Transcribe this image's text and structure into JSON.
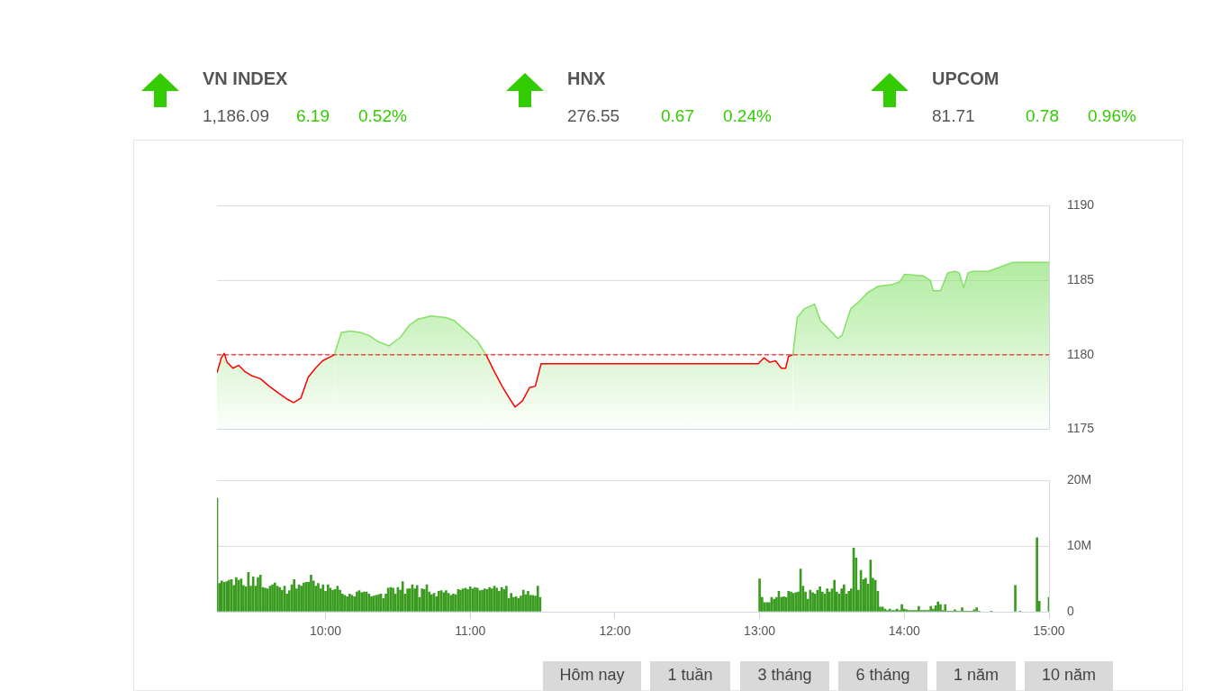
{
  "chart_data": [
    {
      "type": "other",
      "categories": [
        "VN INDEX",
        "HNX",
        "UPCOM"
      ],
      "series": [
        {
          "color": "#555555",
          "values": [
            1186.09,
            276.55,
            81.71
          ],
          "value_labels": [
            "1,186.09",
            "276.55",
            "81.71"
          ]
        },
        {
          "color": "#33cc00",
          "values": [
            6.19,
            0.67,
            0.78
          ],
          "value_labels": [
            "6.19",
            "0.67",
            "0.78"
          ]
        },
        {
          "color": "#33cc00",
          "values": [
            0.52,
            0.24,
            0.96
          ],
          "value_labels": [
            "0.52%",
            "0.24%",
            "0.96%"
          ]
        }
      ]
    },
    {
      "type": "area",
      "xlim": [
        9.25,
        15
      ],
      "ylim": [
        1175,
        1190
      ],
      "yticks": [
        1175,
        1180,
        1185,
        1190
      ],
      "grid": "y",
      "tick_labels": "y",
      "series": [
        {
          "type": "area",
          "color": "#ff0000",
          "x": [
            9.25,
            9.28,
            9.3,
            9.32,
            9.36,
            9.4,
            9.44,
            9.49,
            9.55,
            9.61,
            9.68,
            9.74,
            9.78,
            9.83,
            9.88,
            9.93,
            9.98,
            10.02,
            10.06
          ],
          "values": [
            1178.8,
            1179.8,
            1180.1,
            1179.5,
            1179.1,
            1179.3,
            1178.9,
            1178.6,
            1178.4,
            1177.9,
            1177.4,
            1177.0,
            1176.8,
            1177.1,
            1178.5,
            1179.1,
            1179.6,
            1179.8,
            1180.0
          ]
        },
        {
          "type": "area",
          "color": "#86e06a",
          "x": [
            10.06,
            10.11,
            10.17,
            10.24,
            10.3,
            10.36,
            10.44,
            10.52,
            10.58,
            10.64,
            10.73,
            10.83,
            10.89,
            10.97,
            11.05,
            11.11
          ],
          "values": [
            1180.0,
            1181.5,
            1181.6,
            1181.5,
            1181.3,
            1180.9,
            1180.6,
            1181.2,
            1182.0,
            1182.4,
            1182.6,
            1182.5,
            1182.3,
            1181.6,
            1180.9,
            1180.0
          ]
        },
        {
          "type": "area",
          "color": "#ff0000",
          "x": [
            11.11,
            11.16,
            11.22,
            11.27,
            11.31,
            11.36,
            11.41,
            11.45,
            11.49,
            11.98,
            12.73,
            12.99,
            13.03,
            13.07,
            13.11,
            13.15,
            13.18,
            13.2,
            13.23
          ],
          "values": [
            1180.0,
            1179.0,
            1177.9,
            1177.1,
            1176.5,
            1176.9,
            1177.8,
            1177.9,
            1179.4,
            1179.4,
            1179.4,
            1179.4,
            1179.8,
            1179.5,
            1179.6,
            1179.1,
            1179.1,
            1179.9,
            1180.0
          ]
        },
        {
          "type": "area",
          "color": "#86e06a",
          "x": [
            13.23,
            13.26,
            13.31,
            13.38,
            13.42,
            13.49,
            13.54,
            13.57,
            13.63,
            13.69,
            13.75,
            13.82,
            13.91,
            13.97,
            14.0,
            14.13,
            14.18,
            14.2,
            14.25,
            14.3,
            14.35,
            14.38,
            14.41,
            14.44,
            14.47,
            14.58,
            14.75,
            15.0
          ],
          "values": [
            1180.0,
            1182.5,
            1183.1,
            1183.4,
            1182.3,
            1181.6,
            1181.1,
            1181.3,
            1183.1,
            1183.6,
            1184.2,
            1184.6,
            1184.7,
            1184.9,
            1185.4,
            1185.3,
            1185.0,
            1184.3,
            1184.3,
            1185.5,
            1185.6,
            1185.5,
            1184.5,
            1185.5,
            1185.6,
            1185.6,
            1186.2,
            1186.2
          ]
        }
      ],
      "ref_lines": [
        {
          "axis": "y",
          "value": 1180,
          "color": "#ff0000",
          "line_style": "dashed"
        }
      ]
    },
    {
      "type": "bar",
      "color": "#3a9c1f",
      "xlim": [
        9.25,
        15
      ],
      "xticks": [
        {
          "value": 10,
          "label": "10:00"
        },
        {
          "value": 11,
          "label": "11:00"
        },
        {
          "value": 12,
          "label": "12:00"
        },
        {
          "value": 13,
          "label": "13:00"
        },
        {
          "value": 14,
          "label": "14:00"
        },
        {
          "value": 15,
          "label": "15:00"
        }
      ],
      "ylim": [
        0,
        20
      ],
      "yticks": [
        {
          "value": 0,
          "label": "0"
        },
        {
          "value": 10,
          "label": "10M"
        },
        {
          "value": 20,
          "label": "20M"
        }
      ],
      "grid": "y",
      "x": [
        9.25,
        9.267,
        9.283,
        9.3,
        9.317,
        9.333,
        9.35,
        9.367,
        9.383,
        9.4,
        9.417,
        9.433,
        9.45,
        9.467,
        9.483,
        9.5,
        9.517,
        9.533,
        9.55,
        9.567,
        9.583,
        9.6,
        9.617,
        9.633,
        9.65,
        9.667,
        9.683,
        9.7,
        9.717,
        9.733,
        9.75,
        9.767,
        9.783,
        9.8,
        9.817,
        9.833,
        9.85,
        9.867,
        9.883,
        9.9,
        9.917,
        9.933,
        9.95,
        9.967,
        9.983,
        10.0,
        10.017,
        10.033,
        10.05,
        10.067,
        10.083,
        10.1,
        10.117,
        10.133,
        10.15,
        10.167,
        10.183,
        10.2,
        10.217,
        10.233,
        10.25,
        10.267,
        10.283,
        10.3,
        10.317,
        10.333,
        10.35,
        10.367,
        10.383,
        10.4,
        10.417,
        10.433,
        10.45,
        10.467,
        10.483,
        10.5,
        10.517,
        10.533,
        10.55,
        10.567,
        10.583,
        10.6,
        10.617,
        10.633,
        10.65,
        10.667,
        10.683,
        10.7,
        10.717,
        10.733,
        10.75,
        10.767,
        10.783,
        10.8,
        10.817,
        10.833,
        10.85,
        10.867,
        10.883,
        10.9,
        10.917,
        10.933,
        10.95,
        10.967,
        10.983,
        11.0,
        11.017,
        11.033,
        11.05,
        11.067,
        11.083,
        11.1,
        11.117,
        11.133,
        11.15,
        11.167,
        11.183,
        11.2,
        11.217,
        11.233,
        11.25,
        11.267,
        11.283,
        11.3,
        11.317,
        11.333,
        11.35,
        11.367,
        11.383,
        11.4,
        11.417,
        11.433,
        11.45,
        11.467,
        11.483,
        13.0,
        13.017,
        13.033,
        13.05,
        13.067,
        13.083,
        13.1,
        13.117,
        13.133,
        13.15,
        13.167,
        13.183,
        13.2,
        13.217,
        13.233,
        13.25,
        13.267,
        13.283,
        13.3,
        13.317,
        13.333,
        13.35,
        13.367,
        13.383,
        13.4,
        13.417,
        13.433,
        13.45,
        13.467,
        13.483,
        13.5,
        13.517,
        13.533,
        13.55,
        13.567,
        13.583,
        13.6,
        13.617,
        13.633,
        13.65,
        13.667,
        13.683,
        13.7,
        13.717,
        13.733,
        13.75,
        13.767,
        13.783,
        13.8,
        13.817,
        13.833,
        13.85,
        13.867,
        13.883,
        13.9,
        13.917,
        13.933,
        13.95,
        13.967,
        13.983,
        14.0,
        14.017,
        14.033,
        14.05,
        14.067,
        14.083,
        14.1,
        14.117,
        14.133,
        14.15,
        14.167,
        14.183,
        14.2,
        14.217,
        14.233,
        14.25,
        14.267,
        14.283,
        14.3,
        14.317,
        14.333,
        14.35,
        14.367,
        14.383,
        14.4,
        14.417,
        14.433,
        14.45,
        14.467,
        14.483,
        14.5,
        14.517,
        14.6,
        14.767,
        14.8,
        14.917,
        14.933,
        15.0
      ],
      "values": [
        17.3,
        4.3,
        4.7,
        4.5,
        4.6,
        4.8,
        4.9,
        4.0,
        5.2,
        4.8,
        5.0,
        4.0,
        3.8,
        6.0,
        3.9,
        5.3,
        3.9,
        5.2,
        5.6,
        3.7,
        3.6,
        3.5,
        3.9,
        4.1,
        4.4,
        3.9,
        3.7,
        3.3,
        3.9,
        2.7,
        3.2,
        4.1,
        4.9,
        3.5,
        4.1,
        3.9,
        4.4,
        4.5,
        4.5,
        5.6,
        4.7,
        3.9,
        4.3,
        3.5,
        4.1,
        3.1,
        4.1,
        3.6,
        3.3,
        3.4,
        3.9,
        3.3,
        2.7,
        2.5,
        2.3,
        2.7,
        2.5,
        2.3,
        3.0,
        3.2,
        2.9,
        3.0,
        3.0,
        2.7,
        2.3,
        2.4,
        2.5,
        2.6,
        2.7,
        2.0,
        2.7,
        3.6,
        3.7,
        3.6,
        2.7,
        3.7,
        3.3,
        4.6,
        2.7,
        3.5,
        3.5,
        4.1,
        3.5,
        4.0,
        2.2,
        3.5,
        3.4,
        4.1,
        3.0,
        2.6,
        2.8,
        2.3,
        3.1,
        3.2,
        2.9,
        3.2,
        2.8,
        2.5,
        2.7,
        2.6,
        3.4,
        3.3,
        3.5,
        3.6,
        3.4,
        3.8,
        3.5,
        3.7,
        3.6,
        3.2,
        3.3,
        3.5,
        3.4,
        3.7,
        3.5,
        3.9,
        3.6,
        3.1,
        3.7,
        3.4,
        3.9,
        2.0,
        2.8,
        2.2,
        2.3,
        2.0,
        2.4,
        3.3,
        2.6,
        3.1,
        2.5,
        2.5,
        2.4,
        3.9,
        2.2,
        5.0,
        2.2,
        1.4,
        1.4,
        1.4,
        2.2,
        1.9,
        2.2,
        3.1,
        2.2,
        2.3,
        2.2,
        3.1,
        3.0,
        2.8,
        2.9,
        3.0,
        6.5,
        3.9,
        3.0,
        1.9,
        3.3,
        2.9,
        2.7,
        3.3,
        3.8,
        3.0,
        2.7,
        3.5,
        3.0,
        3.5,
        4.8,
        3.0,
        2.7,
        3.5,
        4.1,
        2.7,
        3.1,
        3.5,
        9.7,
        8.2,
        3.3,
        6.3,
        4.9,
        5.1,
        4.2,
        7.9,
        5.1,
        4.8,
        3.1,
        0.7,
        0.7,
        0.4,
        0.2,
        0.4,
        0.2,
        0.2,
        0.4,
        0.2,
        1.1,
        0.4,
        0.3,
        0.2,
        0.2,
        0.2,
        0.2,
        0.8,
        0.2,
        0.2,
        0.2,
        0.2,
        0.8,
        0.4,
        0.9,
        1.5,
        1.1,
        0.2,
        1.1,
        0.1,
        0.1,
        0.1,
        0.3,
        0.1,
        0.1,
        0.6,
        0.1,
        0.1,
        0.1,
        0.1,
        0.3,
        0.6,
        0.1,
        0.1,
        4.0,
        0.1,
        11.3,
        1.6,
        2.2
      ]
    },
    {
      "type": "other",
      "categories": [
        "Hôm nay",
        "1 tuần",
        "3 tháng",
        "6 tháng",
        "1 năm",
        "10 năm"
      ]
    }
  ]
}
